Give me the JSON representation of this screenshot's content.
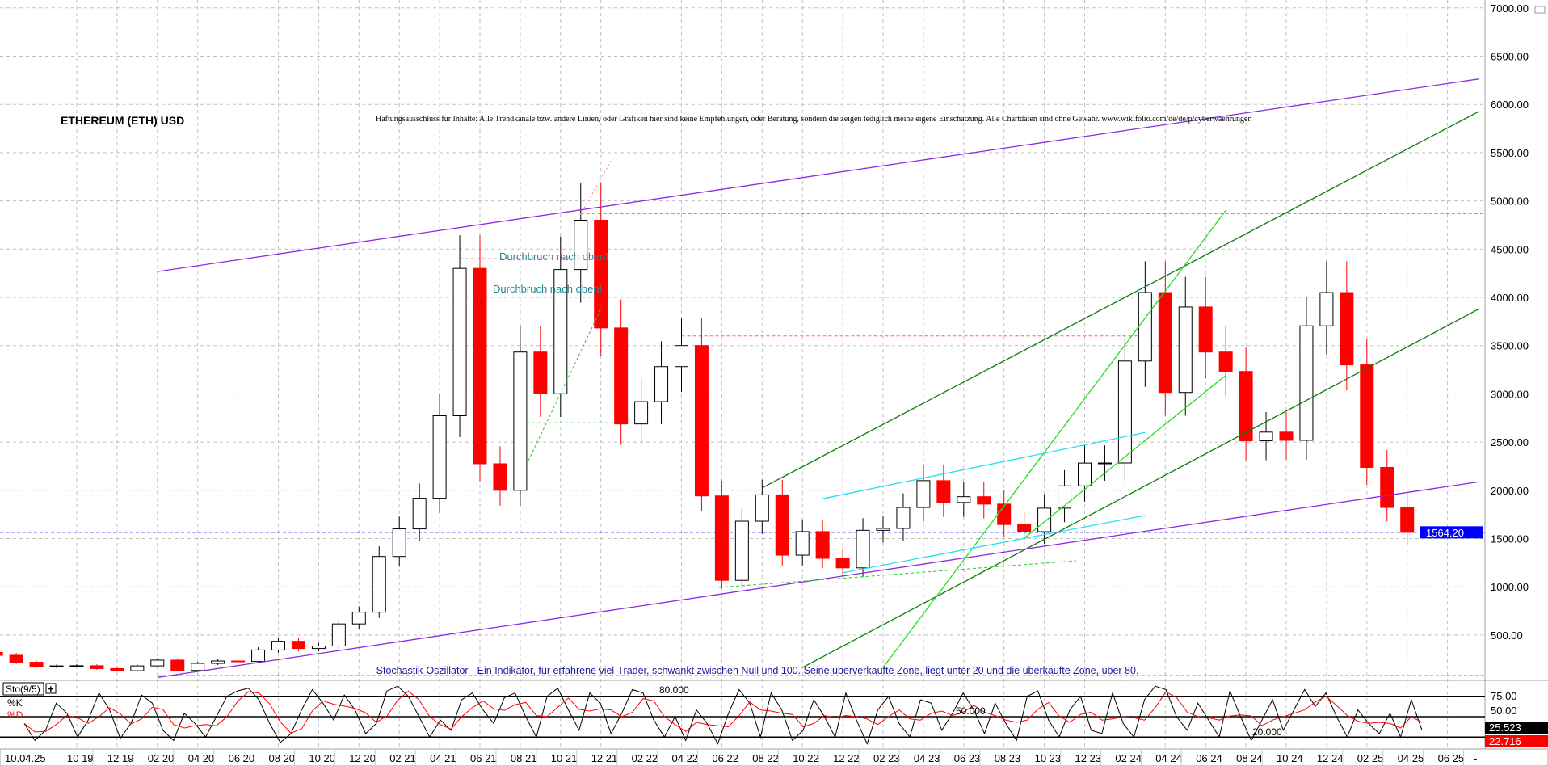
{
  "chart_data": {
    "type": "candlestick",
    "title": "ETHEREUM (ETH) USD",
    "disclaimer": "Haftungsausschluss für Inhalte: Alle Trendkanäle bzw. andere Linien, oder Grafiken hier sind keine Empfehlungen, oder Beratung, sondern die zeigen lediglich meine eigene Einschätzung. Alle Chartdaten sind ohne Gewähr.  www.wikifolio.com/de/de/p/cyberwaehrungen",
    "ylim": [
      0,
      7000
    ],
    "y_ticks": [
      "7000.00",
      "6500.00",
      "6000.00",
      "5500.00",
      "5000.00",
      "4500.00",
      "4000.00",
      "3500.00",
      "3000.00",
      "2500.00",
      "2000.00",
      "1500.00",
      "1000.00",
      "500.00"
    ],
    "grid": true,
    "current_date": "10.04.25",
    "x_ticks": [
      "10 19",
      "12 19",
      "02 20",
      "04 20",
      "06 20",
      "08 20",
      "10 20",
      "12 20",
      "02 21",
      "04 21",
      "06 21",
      "08 21",
      "10 21",
      "12 21",
      "02 22",
      "04 22",
      "06 22",
      "08 22",
      "10 22",
      "12 22",
      "02 23",
      "04 23",
      "06 23",
      "08 23",
      "10 23",
      "12 23",
      "02 24",
      "04 24",
      "06 24",
      "08 24",
      "10 24",
      "12 24",
      "02 25",
      "04 25",
      "06 25"
    ],
    "last_price": "1564.20",
    "monthly_close": [
      [
        "2019-06",
        290
      ],
      [
        "2019-07",
        218
      ],
      [
        "2019-08",
        172
      ],
      [
        "2019-09",
        180
      ],
      [
        "2019-10",
        182
      ],
      [
        "2019-11",
        152
      ],
      [
        "2019-12",
        130
      ],
      [
        "2020-01",
        180
      ],
      [
        "2020-02",
        240
      ],
      [
        "2020-03",
        133
      ],
      [
        "2020-04",
        206
      ],
      [
        "2020-05",
        231
      ],
      [
        "2020-06",
        226
      ],
      [
        "2020-07",
        345
      ],
      [
        "2020-08",
        435
      ],
      [
        "2020-09",
        360
      ],
      [
        "2020-10",
        386
      ],
      [
        "2020-11",
        615
      ],
      [
        "2020-12",
        737
      ],
      [
        "2021-01",
        1314
      ],
      [
        "2021-02",
        1600
      ],
      [
        "2021-03",
        1918
      ],
      [
        "2021-04",
        2773
      ],
      [
        "2021-05",
        4300
      ],
      [
        "2021-06",
        2275
      ],
      [
        "2021-07",
        2000
      ],
      [
        "2021-08",
        3433
      ],
      [
        "2021-09",
        3001
      ],
      [
        "2021-10",
        4288
      ],
      [
        "2021-11",
        4800
      ],
      [
        "2021-12",
        3683
      ],
      [
        "2022-01",
        2688
      ],
      [
        "2022-02",
        2919
      ],
      [
        "2022-03",
        3282
      ],
      [
        "2022-04",
        3500
      ],
      [
        "2022-05",
        1942
      ],
      [
        "2022-06",
        1067
      ],
      [
        "2022-07",
        1680
      ],
      [
        "2022-08",
        1953
      ],
      [
        "2022-09",
        1328
      ],
      [
        "2022-10",
        1572
      ],
      [
        "2022-11",
        1295
      ],
      [
        "2022-12",
        1196
      ],
      [
        "2023-01",
        1585
      ],
      [
        "2023-02",
        1605
      ],
      [
        "2023-03",
        1822
      ],
      [
        "2023-04",
        2100
      ],
      [
        "2023-05",
        1874
      ],
      [
        "2023-06",
        1934
      ],
      [
        "2023-07",
        1857
      ],
      [
        "2023-08",
        1645
      ],
      [
        "2023-09",
        1571
      ],
      [
        "2023-10",
        1815
      ],
      [
        "2023-11",
        2046
      ],
      [
        "2023-12",
        2282
      ],
      [
        "2024-01",
        2283
      ],
      [
        "2024-02",
        3340
      ],
      [
        "2024-03",
        4050
      ],
      [
        "2024-04",
        3014
      ],
      [
        "2024-05",
        3900
      ],
      [
        "2024-06",
        3433
      ],
      [
        "2024-07",
        3232
      ],
      [
        "2024-08",
        2513
      ],
      [
        "2024-09",
        2603
      ],
      [
        "2024-10",
        2518
      ],
      [
        "2024-11",
        3705
      ],
      [
        "2024-12",
        4050
      ],
      [
        "2025-01",
        3300
      ],
      [
        "2025-02",
        2237
      ],
      [
        "2025-03",
        1822
      ],
      [
        "2025-04",
        1564
      ]
    ],
    "lines": [
      {
        "name": "upper-channel",
        "color": "#8a2be2",
        "from": [
          "2020-02",
          4267
        ],
        "to": [
          "2025-08",
          6263
        ]
      },
      {
        "name": "lower-channel",
        "color": "#8a2be2",
        "from": [
          "2020-02",
          60
        ],
        "to": [
          "2025-08",
          2087
        ]
      },
      {
        "name": "green-channel-top",
        "color": "#0a7a0a",
        "from": [
          "2022-08",
          2025
        ],
        "to": [
          "2025-08",
          5925
        ]
      },
      {
        "name": "green-channel-bottom",
        "color": "#0a7a0a",
        "from": [
          "2022-10",
          163
        ],
        "to": [
          "2025-08",
          3878
        ]
      },
      {
        "name": "light-green-1",
        "color": "#22dd22",
        "from": [
          "2023-02",
          163
        ],
        "to": [
          "2024-07",
          4900
        ]
      },
      {
        "name": "light-green-2",
        "color": "#22dd22",
        "from": [
          "2023-09",
          1503
        ],
        "to": [
          "2024-07",
          3192
        ]
      },
      {
        "name": "cyan-1",
        "color": "#22e0f0",
        "from": [
          "2022-11",
          1913
        ],
        "to": [
          "2024-03",
          2599
        ]
      },
      {
        "name": "cyan-2",
        "color": "#22e0f0",
        "from": [
          "2022-12",
          1145
        ],
        "to": [
          "2024-03",
          1739
        ]
      }
    ],
    "levels": [
      {
        "name": "ath-level",
        "color": "#ff2020",
        "price": 4870,
        "from": "2021-11",
        "to": "2025-08"
      },
      {
        "name": "resistance-3600",
        "color": "#ff6060",
        "price": 3600,
        "from": "2022-04",
        "to": "2024-03"
      },
      {
        "name": "breakout-4400",
        "color": "#ff2020",
        "price": 4400,
        "from": "2021-05",
        "to": "2021-11"
      },
      {
        "name": "breakout-2700",
        "color": "#22cc22",
        "price": 2700,
        "from": "2021-08",
        "to": "2022-02"
      },
      {
        "name": "last-price",
        "color": "#2020ff",
        "price": 1564.2,
        "from": "2019-06",
        "to": "2025-08"
      },
      {
        "name": "base-level",
        "color": "#22cc22",
        "price": 80,
        "from": "2020-02",
        "to": "2025-08"
      }
    ],
    "annotations": [
      "Durchbruch nach oben!",
      "Durchbruch nach oben!"
    ],
    "stochastic": {
      "label": "Sto(9/5)",
      "k_label": "%K",
      "d_label": "%D",
      "info": "- Stochastik-Oszillator - Ein Indikator, für erfahrene viel-Trader, schwankt zwischen Null und 100. Seine überverkaufte Zone, liegt unter 20 und die überkaufte Zone, über 80.",
      "levels": [
        "80.000",
        "50.000",
        "20.000"
      ],
      "y_ticks": [
        "75.00",
        "50.00"
      ],
      "k_last": "25.523",
      "d_last": "22.716",
      "k": [
        40,
        15,
        30,
        70,
        55,
        20,
        45,
        85,
        60,
        18,
        40,
        82,
        70,
        30,
        15,
        55,
        40,
        20,
        50,
        80,
        88,
        92,
        75,
        40,
        12,
        25,
        60,
        90,
        70,
        45,
        82,
        60,
        25,
        40,
        88,
        95,
        80,
        50,
        20,
        45,
        30,
        75,
        85,
        60,
        40,
        78,
        85,
        50,
        20,
        80,
        92,
        60,
        30,
        85,
        70,
        25,
        55,
        90,
        85,
        45,
        20,
        50,
        15,
        60,
        40,
        10,
        55,
        90,
        70,
        20,
        85,
        60,
        15,
        30,
        75,
        50,
        20,
        85,
        45,
        10,
        60,
        80,
        40,
        20,
        75,
        70,
        30,
        55,
        85,
        60,
        25,
        70,
        40,
        15,
        80,
        88,
        45,
        20,
        60,
        80,
        30,
        25,
        85,
        40,
        20,
        75,
        95,
        90,
        50,
        30,
        70,
        45,
        20,
        88,
        50,
        15,
        45,
        75,
        30,
        60,
        90,
        65,
        85,
        50,
        20,
        60,
        40,
        25,
        55,
        20,
        75,
        30
      ]
    },
    "colors": {
      "up": "#000000",
      "down": "#ff0000",
      "grid": "#c0c0c0",
      "price_box": "#0000ff"
    }
  }
}
